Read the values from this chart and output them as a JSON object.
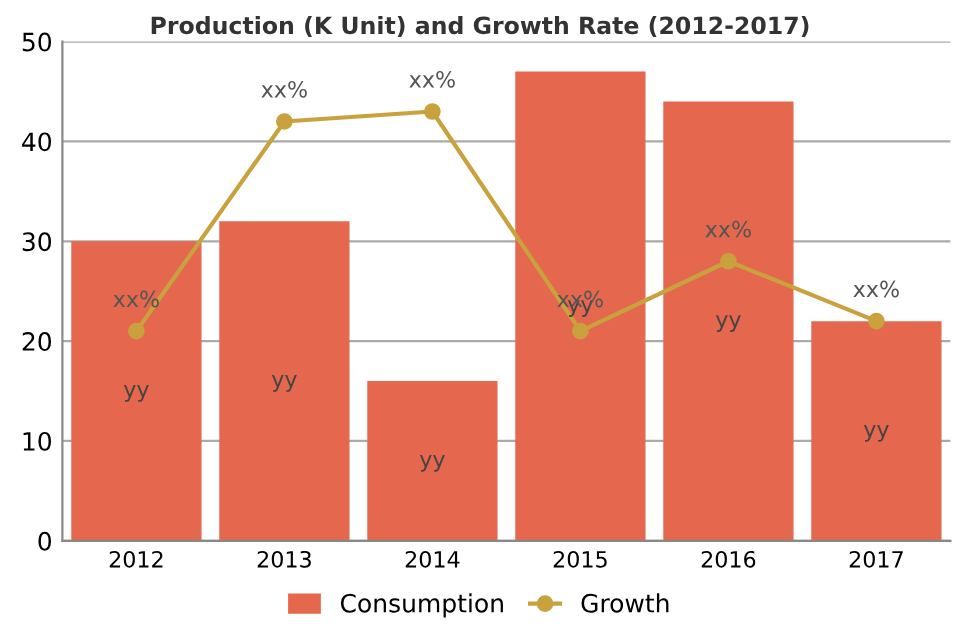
{
  "chart_data": {
    "type": "bar",
    "title": "Production (K Unit) and Growth Rate (2012-2017)",
    "categories": [
      "2012",
      "2013",
      "2014",
      "2015",
      "2016",
      "2017"
    ],
    "series": [
      {
        "name": "Consumption",
        "color": "#e5684e",
        "values": [
          30,
          32,
          16,
          47,
          44,
          22
        ],
        "value_labels": [
          "yy",
          "yy",
          "yy",
          "yy",
          "yy",
          "yy"
        ]
      },
      {
        "name": "Growth",
        "type": "line",
        "color": "#c9a13d",
        "values": [
          21,
          42,
          43,
          21,
          28,
          22
        ],
        "value_labels": [
          "xx%",
          "xx%",
          "xx%",
          "xx%",
          "xx%",
          "xx%"
        ],
        "marker": "circle",
        "line_style": "solid"
      }
    ],
    "ylim": [
      0,
      50
    ],
    "yticks": [
      0,
      10,
      20,
      30,
      40,
      50
    ],
    "grid": "y",
    "legend": "bottom"
  }
}
